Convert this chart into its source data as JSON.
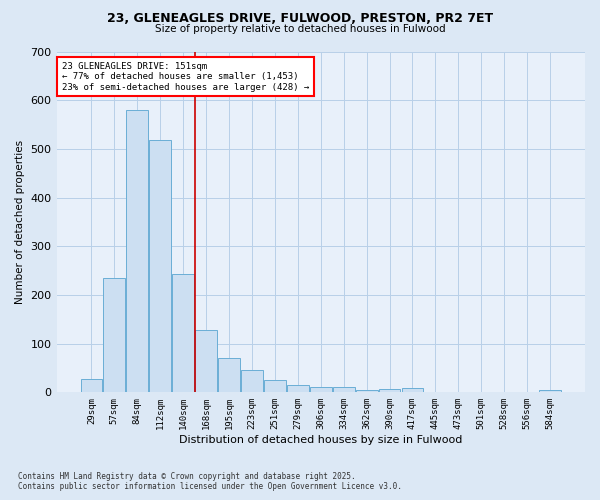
{
  "title_line1": "23, GLENEAGLES DRIVE, FULWOOD, PRESTON, PR2 7ET",
  "title_line2": "Size of property relative to detached houses in Fulwood",
  "xlabel": "Distribution of detached houses by size in Fulwood",
  "ylabel": "Number of detached properties",
  "bar_color": "#ccdff2",
  "bar_edge_color": "#6aaed6",
  "background_color": "#e8f0fa",
  "fig_background_color": "#dce8f5",
  "categories": [
    "29sqm",
    "57sqm",
    "84sqm",
    "112sqm",
    "140sqm",
    "168sqm",
    "195sqm",
    "223sqm",
    "251sqm",
    "279sqm",
    "306sqm",
    "334sqm",
    "362sqm",
    "390sqm",
    "417sqm",
    "445sqm",
    "473sqm",
    "501sqm",
    "528sqm",
    "556sqm",
    "584sqm"
  ],
  "values": [
    28,
    234,
    580,
    518,
    243,
    127,
    70,
    46,
    26,
    16,
    10,
    11,
    5,
    6,
    8,
    0,
    0,
    0,
    0,
    0,
    5
  ],
  "vline_x": 4.5,
  "annotation_title": "23 GLENEAGLES DRIVE: 151sqm",
  "annotation_line1": "← 77% of detached houses are smaller (1,453)",
  "annotation_line2": "23% of semi-detached houses are larger (428) →",
  "vline_color": "#cc0000",
  "footer_line1": "Contains HM Land Registry data © Crown copyright and database right 2025.",
  "footer_line2": "Contains public sector information licensed under the Open Government Licence v3.0.",
  "ylim": [
    0,
    700
  ],
  "yticks": [
    0,
    100,
    200,
    300,
    400,
    500,
    600,
    700
  ],
  "grid_color": "#b8cfe8"
}
